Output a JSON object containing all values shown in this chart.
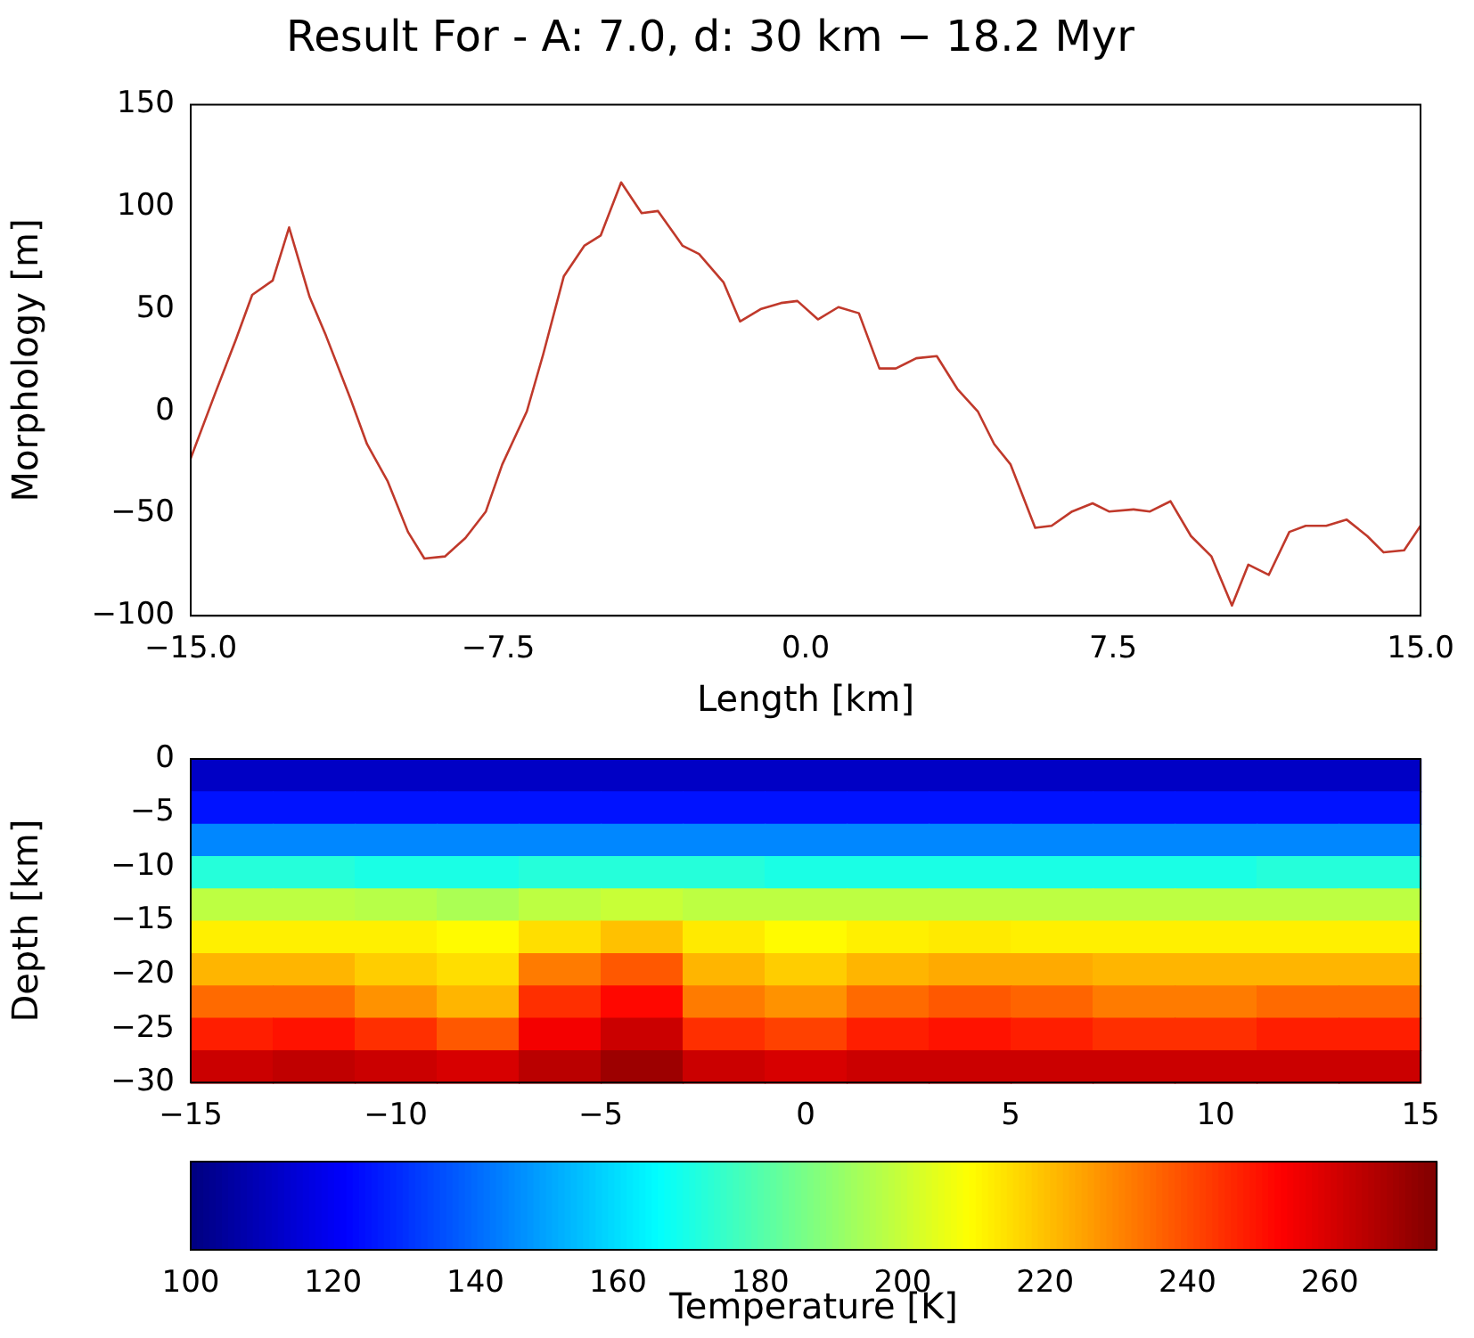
{
  "chart_data": [
    {
      "type": "line",
      "title": "Result For - A: 7.0, d: 30 km − 18.2 Myr",
      "xlabel": "Length [km]",
      "ylabel": "Morphology [m]",
      "x": [
        -15,
        -14.4,
        -13.9,
        -13.5,
        -13.0,
        -12.6,
        -12.1,
        -11.7,
        -11.1,
        -10.7,
        -10.2,
        -9.7,
        -9.3,
        -8.8,
        -8.3,
        -7.8,
        -7.4,
        -6.8,
        -6.4,
        -5.9,
        -5.4,
        -5.0,
        -4.5,
        -4.0,
        -3.6,
        -3.0,
        -2.6,
        -2.0,
        -1.6,
        -1.1,
        -0.6,
        -0.2,
        0.3,
        0.8,
        1.3,
        1.8,
        2.2,
        2.7,
        3.2,
        3.7,
        4.2,
        4.6,
        5.0,
        5.6,
        6.0,
        6.5,
        7.0,
        7.4,
        8.0,
        8.4,
        8.9,
        9.4,
        9.9,
        10.4,
        10.8,
        11.3,
        11.8,
        12.2,
        12.7,
        13.2,
        13.7,
        14.1,
        14.6,
        15
      ],
      "values": [
        -23,
        9,
        35,
        57,
        64,
        90,
        56,
        37,
        6,
        -16,
        -34,
        -59,
        -72,
        -71,
        -62,
        -49,
        -26,
        0,
        28,
        66,
        81,
        86,
        112,
        97,
        98,
        81,
        77,
        63,
        44,
        50,
        53,
        54,
        45,
        51,
        48,
        21,
        21,
        26,
        27,
        11,
        0,
        -16,
        -26,
        -57,
        -56,
        -49,
        -45,
        -49,
        -48,
        -49,
        -44,
        -61,
        -71,
        -95,
        -75,
        -80,
        -59,
        -56,
        -56,
        -53,
        -61,
        -69,
        -68,
        -56
      ],
      "color": "#c0392b",
      "xlim": [
        -15,
        15
      ],
      "xticks": [
        {
          "value": -15,
          "label": "−15.0"
        },
        {
          "value": -7.5,
          "label": "−7.5"
        },
        {
          "value": 0,
          "label": "0.0"
        },
        {
          "value": 7.5,
          "label": "7.5"
        },
        {
          "value": 15,
          "label": "15.0"
        }
      ],
      "ylim": [
        -100,
        150
      ],
      "yticks": [
        {
          "value": -100,
          "label": "−100"
        },
        {
          "value": -50,
          "label": "−50"
        },
        0,
        50,
        100,
        150
      ]
    },
    {
      "type": "heatmap",
      "ylabel": "Depth [km]",
      "xlim": [
        -15,
        15
      ],
      "xticks": [
        {
          "value": -15,
          "label": "−15"
        },
        {
          "value": -10,
          "label": "−10"
        },
        {
          "value": -5,
          "label": "−5"
        },
        0,
        5,
        10,
        15
      ],
      "ylim": [
        -30,
        0
      ],
      "yticks": [
        {
          "value": -30,
          "label": "−30"
        },
        {
          "value": -25,
          "label": "−25"
        },
        {
          "value": -20,
          "label": "−20"
        },
        {
          "value": -15,
          "label": "−15"
        },
        {
          "value": -10,
          "label": "−10"
        },
        {
          "value": -5,
          "label": "−5"
        },
        0
      ],
      "cells": [
        [
          112,
          112,
          112,
          112,
          112,
          112,
          112,
          112,
          112,
          112,
          112,
          112,
          112,
          112,
          112
        ],
        [
          125,
          125,
          125,
          125,
          125,
          125,
          125,
          125,
          125,
          125,
          125,
          125,
          125,
          125,
          125
        ],
        [
          145,
          145,
          145,
          145,
          145,
          145,
          145,
          145,
          145,
          145,
          145,
          145,
          145,
          145,
          145
        ],
        [
          172,
          172,
          170,
          170,
          172,
          172,
          172,
          170,
          170,
          170,
          170,
          170,
          170,
          172,
          172
        ],
        [
          198,
          198,
          197,
          195,
          198,
          200,
          198,
          198,
          198,
          198,
          198,
          198,
          198,
          198,
          198
        ],
        [
          212,
          212,
          212,
          210,
          215,
          220,
          213,
          210,
          212,
          213,
          212,
          212,
          212,
          212,
          212
        ],
        [
          222,
          222,
          218,
          215,
          232,
          238,
          222,
          218,
          222,
          224,
          224,
          222,
          222,
          222,
          222
        ],
        [
          235,
          235,
          228,
          222,
          245,
          252,
          232,
          228,
          235,
          238,
          236,
          232,
          232,
          235,
          235
        ],
        [
          248,
          250,
          245,
          238,
          255,
          262,
          245,
          242,
          248,
          250,
          248,
          245,
          245,
          248,
          248
        ],
        [
          262,
          264,
          262,
          260,
          265,
          270,
          262,
          260,
          262,
          262,
          262,
          262,
          262,
          262,
          262
        ]
      ],
      "clim": [
        100,
        275
      ],
      "cticks": [
        100,
        120,
        140,
        160,
        180,
        200,
        220,
        240,
        260
      ],
      "clabel": "Temperature [K]"
    }
  ]
}
